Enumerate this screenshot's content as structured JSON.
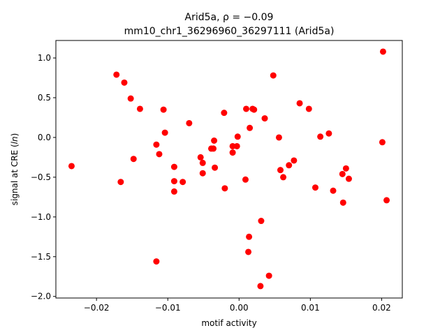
{
  "chart_data": {
    "type": "scatter",
    "title_line1_prefix": "Arid5a, ",
    "title_line1_rho": "ρ = −0.09",
    "title_line2": "mm10_chr1_36296960_36297111 (Arid5a)",
    "xlabel": "motif activity",
    "ylabel_prefix": "signal at CRE (",
    "ylabel_italic": "ln",
    "ylabel_suffix": ")",
    "xlim": [
      -0.0257,
      0.0229
    ],
    "ylim": [
      -2.02,
      1.22
    ],
    "xticks": [
      -0.02,
      -0.01,
      0.0,
      0.01,
      0.02
    ],
    "xtick_labels": [
      "−0.02",
      "−0.01",
      "0.00",
      "0.01",
      "0.02"
    ],
    "yticks": [
      1.0,
      0.5,
      0.0,
      -0.5,
      -1.0,
      -1.5,
      -2.0
    ],
    "ytick_labels": [
      "1.0",
      "0.5",
      "0.0",
      "−0.5",
      "−1.0",
      "−1.5",
      "−2.0"
    ],
    "marker_color": "#ff0000",
    "grid": false,
    "points": [
      {
        "x": -0.0235,
        "y": -0.36
      },
      {
        "x": -0.0172,
        "y": 0.79
      },
      {
        "x": -0.0166,
        "y": -0.56
      },
      {
        "x": -0.0161,
        "y": 0.69
      },
      {
        "x": -0.0152,
        "y": 0.49
      },
      {
        "x": -0.0148,
        "y": -0.27
      },
      {
        "x": -0.0139,
        "y": 0.36
      },
      {
        "x": -0.0116,
        "y": -0.09
      },
      {
        "x": -0.0116,
        "y": -1.56
      },
      {
        "x": -0.0112,
        "y": -0.21
      },
      {
        "x": -0.0106,
        "y": 0.35
      },
      {
        "x": -0.0104,
        "y": 0.06
      },
      {
        "x": -0.0091,
        "y": -0.37
      },
      {
        "x": -0.0091,
        "y": -0.55
      },
      {
        "x": -0.0091,
        "y": -0.68
      },
      {
        "x": -0.0079,
        "y": -0.56
      },
      {
        "x": -0.007,
        "y": 0.18
      },
      {
        "x": -0.0054,
        "y": -0.25
      },
      {
        "x": -0.0051,
        "y": -0.32
      },
      {
        "x": -0.0051,
        "y": -0.45
      },
      {
        "x": -0.0039,
        "y": -0.14
      },
      {
        "x": -0.0036,
        "y": -0.14
      },
      {
        "x": -0.0035,
        "y": -0.04
      },
      {
        "x": -0.0034,
        "y": -0.38
      },
      {
        "x": -0.0021,
        "y": 0.31
      },
      {
        "x": -0.002,
        "y": -0.64
      },
      {
        "x": -0.0009,
        "y": -0.11
      },
      {
        "x": -0.0009,
        "y": -0.19
      },
      {
        "x": -0.0003,
        "y": -0.11
      },
      {
        "x": -0.0002,
        "y": 0.01
      },
      {
        "x": 0.0009,
        "y": -0.53
      },
      {
        "x": 0.001,
        "y": 0.36
      },
      {
        "x": 0.0013,
        "y": -1.44
      },
      {
        "x": 0.0014,
        "y": -1.25
      },
      {
        "x": 0.0015,
        "y": 0.12
      },
      {
        "x": 0.0019,
        "y": 0.36
      },
      {
        "x": 0.0021,
        "y": 0.35
      },
      {
        "x": 0.003,
        "y": -1.87
      },
      {
        "x": 0.0031,
        "y": -1.05
      },
      {
        "x": 0.0036,
        "y": 0.24
      },
      {
        "x": 0.0042,
        "y": -1.74
      },
      {
        "x": 0.0048,
        "y": 0.78
      },
      {
        "x": 0.0056,
        "y": 0.0
      },
      {
        "x": 0.0058,
        "y": -0.41
      },
      {
        "x": 0.0062,
        "y": -0.5
      },
      {
        "x": 0.007,
        "y": -0.35
      },
      {
        "x": 0.0077,
        "y": -0.29
      },
      {
        "x": 0.0085,
        "y": 0.43
      },
      {
        "x": 0.0098,
        "y": 0.36
      },
      {
        "x": 0.0107,
        "y": -0.63
      },
      {
        "x": 0.0114,
        "y": 0.01
      },
      {
        "x": 0.0126,
        "y": 0.05
      },
      {
        "x": 0.0132,
        "y": -0.67
      },
      {
        "x": 0.0145,
        "y": -0.46
      },
      {
        "x": 0.0146,
        "y": -0.82
      },
      {
        "x": 0.015,
        "y": -0.39
      },
      {
        "x": 0.0154,
        "y": -0.52
      },
      {
        "x": 0.0201,
        "y": -0.06
      },
      {
        "x": 0.0202,
        "y": 1.08
      },
      {
        "x": 0.0207,
        "y": -0.79
      }
    ]
  }
}
